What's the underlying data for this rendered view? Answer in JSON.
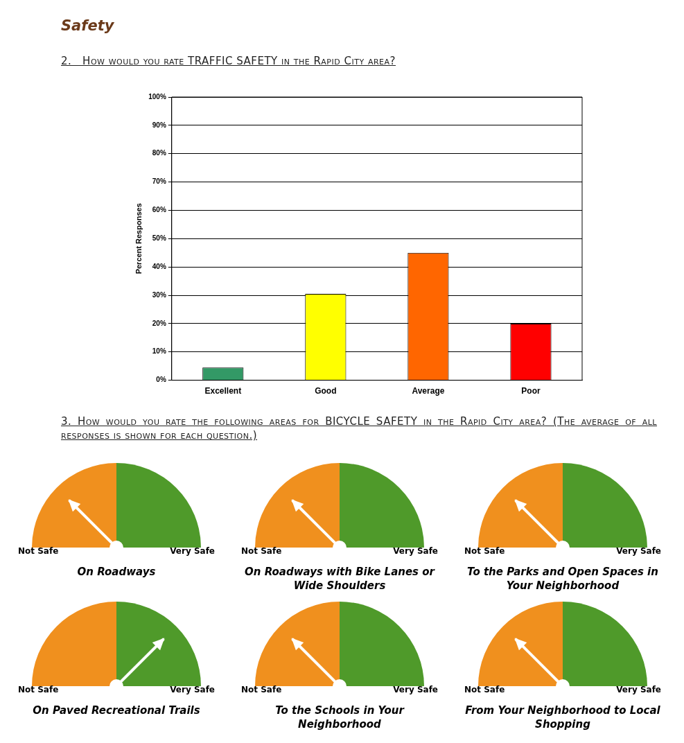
{
  "chart_data": [
    {
      "type": "bar",
      "title": "Safety",
      "subtitle": "2.   How would you rate TRAFFIC SAFETY in the Rapid City area?",
      "ylabel": "Percent Responses",
      "categories": [
        "Excellent",
        "Good",
        "Average",
        "Poor"
      ],
      "values": [
        4.5,
        30.5,
        45,
        20
      ],
      "colors": [
        "#339966",
        "#ffff00",
        "#ff6600",
        "#ff0000"
      ],
      "ylim": [
        0,
        100
      ],
      "yticks": [
        {
          "value": 0,
          "label": "0%"
        },
        {
          "value": 10,
          "label": "10%"
        },
        {
          "value": 20,
          "label": "20%"
        },
        {
          "value": 30,
          "label": "30%"
        },
        {
          "value": 40,
          "label": "40%"
        },
        {
          "value": 50,
          "label": "50%"
        },
        {
          "value": 60,
          "label": "60%"
        },
        {
          "value": 70,
          "label": "70%"
        },
        {
          "value": 80,
          "label": "80%"
        },
        {
          "value": 90,
          "label": "90%"
        },
        {
          "value": 100,
          "label": "100%"
        }
      ],
      "grid": "y",
      "legend": false
    },
    {
      "type": "pie",
      "title": "On Roadways",
      "annotations": [
        "3.   How would you rate the following areas for BICYCLE SAFETY in the Rapid City area? (The average of all responses is shown for each question.)"
      ],
      "categories": [
        "Not Safe",
        "Very Safe"
      ],
      "values": [
        50,
        50
      ],
      "colors": [
        "#f0901e",
        "#4f9a2a"
      ],
      "needle": "Not Safe"
    },
    {
      "type": "pie",
      "title": "On Roadways with Bike Lanes or Wide Shoulders",
      "categories": [
        "Not Safe",
        "Very Safe"
      ],
      "values": [
        50,
        50
      ],
      "colors": [
        "#f0901e",
        "#4f9a2a"
      ],
      "needle": "Not Safe"
    },
    {
      "type": "pie",
      "title": "To the Parks and Open Spaces in Your Neighborhood",
      "categories": [
        "Not Safe",
        "Very Safe"
      ],
      "values": [
        50,
        50
      ],
      "colors": [
        "#f0901e",
        "#4f9a2a"
      ],
      "needle": "Not Safe"
    },
    {
      "type": "pie",
      "title": "On Paved Recreational Trails",
      "categories": [
        "Not Safe",
        "Very Safe"
      ],
      "values": [
        50,
        50
      ],
      "colors": [
        "#f0901e",
        "#4f9a2a"
      ],
      "needle": "Very Safe"
    },
    {
      "type": "pie",
      "title": "To the Schools in Your Neighborhood",
      "categories": [
        "Not Safe",
        "Very Safe"
      ],
      "values": [
        50,
        50
      ],
      "colors": [
        "#f0901e",
        "#4f9a2a"
      ],
      "needle": "Not Safe"
    },
    {
      "type": "pie",
      "title": "From Your Neighborhood to Local Shopping",
      "categories": [
        "Not Safe",
        "Very Safe"
      ],
      "values": [
        50,
        50
      ],
      "colors": [
        "#f0901e",
        "#4f9a2a"
      ],
      "needle": "Not Safe"
    }
  ]
}
